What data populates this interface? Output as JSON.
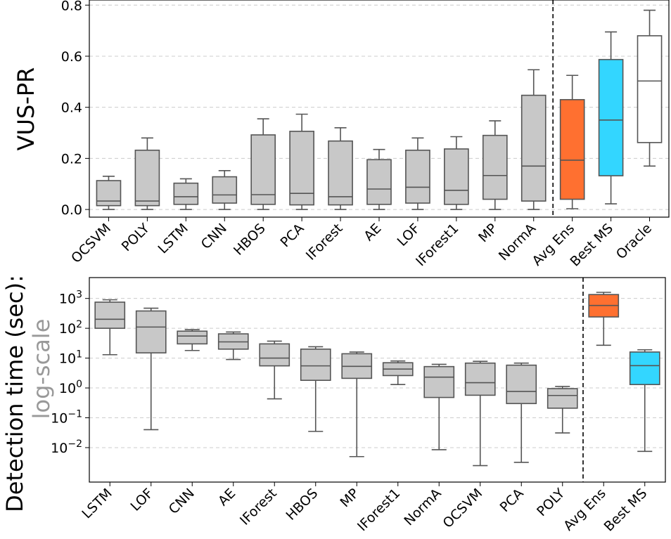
{
  "chart_data": [
    {
      "type": "box",
      "ylabel": "VUS-PR",
      "ylim": [
        -0.03,
        0.82
      ],
      "yticks": [
        "0.0",
        "0.2",
        "0.4",
        "0.6",
        "0.8"
      ],
      "ytick_values": [
        0,
        0.2,
        0.4,
        0.6,
        0.8
      ],
      "grid": "horizontal dashed",
      "separator_after_index": 11,
      "boxes": [
        {
          "name": "OCSVM",
          "whislo": 0.0,
          "q1": 0.015,
          "med": 0.033,
          "q3": 0.113,
          "whishi": 0.13,
          "color": "#c8c8c8"
        },
        {
          "name": "POLY",
          "whislo": 0.0,
          "q1": 0.015,
          "med": 0.033,
          "q3": 0.232,
          "whishi": 0.28,
          "color": "#c8c8c8"
        },
        {
          "name": "LSTM",
          "whislo": 0.0,
          "q1": 0.02,
          "med": 0.05,
          "q3": 0.103,
          "whishi": 0.12,
          "color": "#c8c8c8"
        },
        {
          "name": "CNN",
          "whislo": 0.0,
          "q1": 0.025,
          "med": 0.057,
          "q3": 0.128,
          "whishi": 0.152,
          "color": "#c8c8c8"
        },
        {
          "name": "HBOS",
          "whislo": 0.0,
          "q1": 0.02,
          "med": 0.058,
          "q3": 0.292,
          "whishi": 0.355,
          "color": "#c8c8c8"
        },
        {
          "name": "PCA",
          "whislo": 0.0,
          "q1": 0.018,
          "med": 0.063,
          "q3": 0.306,
          "whishi": 0.373,
          "color": "#c8c8c8"
        },
        {
          "name": "IForest",
          "whislo": 0.0,
          "q1": 0.018,
          "med": 0.05,
          "q3": 0.268,
          "whishi": 0.32,
          "color": "#c8c8c8"
        },
        {
          "name": "AE",
          "whislo": 0.0,
          "q1": 0.02,
          "med": 0.08,
          "q3": 0.195,
          "whishi": 0.235,
          "color": "#c8c8c8"
        },
        {
          "name": "LOF",
          "whislo": 0.0,
          "q1": 0.025,
          "med": 0.087,
          "q3": 0.232,
          "whishi": 0.28,
          "color": "#c8c8c8"
        },
        {
          "name": "IForest1",
          "whislo": 0.0,
          "q1": 0.02,
          "med": 0.075,
          "q3": 0.237,
          "whishi": 0.285,
          "color": "#c8c8c8"
        },
        {
          "name": "MP",
          "whislo": 0.0,
          "q1": 0.04,
          "med": 0.133,
          "q3": 0.29,
          "whishi": 0.347,
          "color": "#c8c8c8"
        },
        {
          "name": "NormA",
          "whislo": 0.0,
          "q1": 0.033,
          "med": 0.17,
          "q3": 0.447,
          "whishi": 0.547,
          "color": "#c8c8c8"
        },
        {
          "name": "Avg Ens",
          "whislo": 0.003,
          "q1": 0.04,
          "med": 0.193,
          "q3": 0.43,
          "whishi": 0.525,
          "color": "#ff7030"
        },
        {
          "name": "Best MS",
          "whislo": 0.022,
          "q1": 0.132,
          "med": 0.35,
          "q3": 0.587,
          "whishi": 0.695,
          "color": "#33d6ff"
        },
        {
          "name": "Oracle",
          "whislo": 0.17,
          "q1": 0.262,
          "med": 0.503,
          "q3": 0.68,
          "whishi": 0.78,
          "color": "#ffffff"
        }
      ]
    },
    {
      "type": "box",
      "ylabel": "Detection time (sec):",
      "ylabel_sub": "log-scale",
      "yscale": "log",
      "ylim": [
        0.0007,
        5000
      ],
      "yticks": [
        {
          "value": 0.01,
          "base": "10",
          "exp": "−2"
        },
        {
          "value": 0.1,
          "base": "10",
          "exp": "−1"
        },
        {
          "value": 1,
          "base": "10",
          "exp": "0"
        },
        {
          "value": 10,
          "base": "10",
          "exp": "1"
        },
        {
          "value": 100,
          "base": "10",
          "exp": "2"
        },
        {
          "value": 1000,
          "base": "10",
          "exp": "3"
        }
      ],
      "grid": "horizontal dashed",
      "separator_after_index": 11,
      "boxes": [
        {
          "name": "LSTM",
          "whislo": 13,
          "q1": 100,
          "med": 200,
          "q3": 750,
          "whishi": 900,
          "color": "#c8c8c8"
        },
        {
          "name": "LOF",
          "whislo": 0.04,
          "q1": 15,
          "med": 110,
          "q3": 380,
          "whishi": 470,
          "color": "#c8c8c8"
        },
        {
          "name": "CNN",
          "whislo": 18,
          "q1": 30,
          "med": 55,
          "q3": 80,
          "whishi": 90,
          "color": "#c8c8c8"
        },
        {
          "name": "AE",
          "whislo": 9,
          "q1": 20,
          "med": 35,
          "q3": 65,
          "whishi": 75,
          "color": "#c8c8c8"
        },
        {
          "name": "IForest",
          "whislo": 0.43,
          "q1": 5.5,
          "med": 10,
          "q3": 30,
          "whishi": 37,
          "color": "#c8c8c8"
        },
        {
          "name": "HBOS",
          "whislo": 0.035,
          "q1": 1.8,
          "med": 5.5,
          "q3": 20,
          "whishi": 24,
          "color": "#c8c8c8"
        },
        {
          "name": "MP",
          "whislo": 0.005,
          "q1": 2.1,
          "med": 5.3,
          "q3": 14,
          "whishi": 16,
          "color": "#c8c8c8"
        },
        {
          "name": "IForest1",
          "whislo": 1.3,
          "q1": 2.6,
          "med": 4.3,
          "q3": 7,
          "whishi": 8,
          "color": "#c8c8c8"
        },
        {
          "name": "NormA",
          "whislo": 0.0085,
          "q1": 0.48,
          "med": 2.3,
          "q3": 5.2,
          "whishi": 6.2,
          "color": "#c8c8c8"
        },
        {
          "name": "OCSVM",
          "whislo": 0.0025,
          "q1": 0.57,
          "med": 1.5,
          "q3": 6.8,
          "whishi": 7.8,
          "color": "#c8c8c8"
        },
        {
          "name": "PCA",
          "whislo": 0.0032,
          "q1": 0.3,
          "med": 0.76,
          "q3": 5.8,
          "whishi": 6.8,
          "color": "#c8c8c8"
        },
        {
          "name": "POLY",
          "whislo": 0.031,
          "q1": 0.21,
          "med": 0.56,
          "q3": 0.95,
          "whishi": 1.12,
          "color": "#c8c8c8"
        },
        {
          "name": "Avg Ens",
          "whislo": 27,
          "q1": 240,
          "med": 580,
          "q3": 1350,
          "whishi": 1600,
          "color": "#ff7030"
        },
        {
          "name": "Best MS",
          "whislo": 0.0075,
          "q1": 1.3,
          "med": 5.6,
          "q3": 16,
          "whishi": 19,
          "color": "#33d6ff"
        }
      ]
    }
  ]
}
